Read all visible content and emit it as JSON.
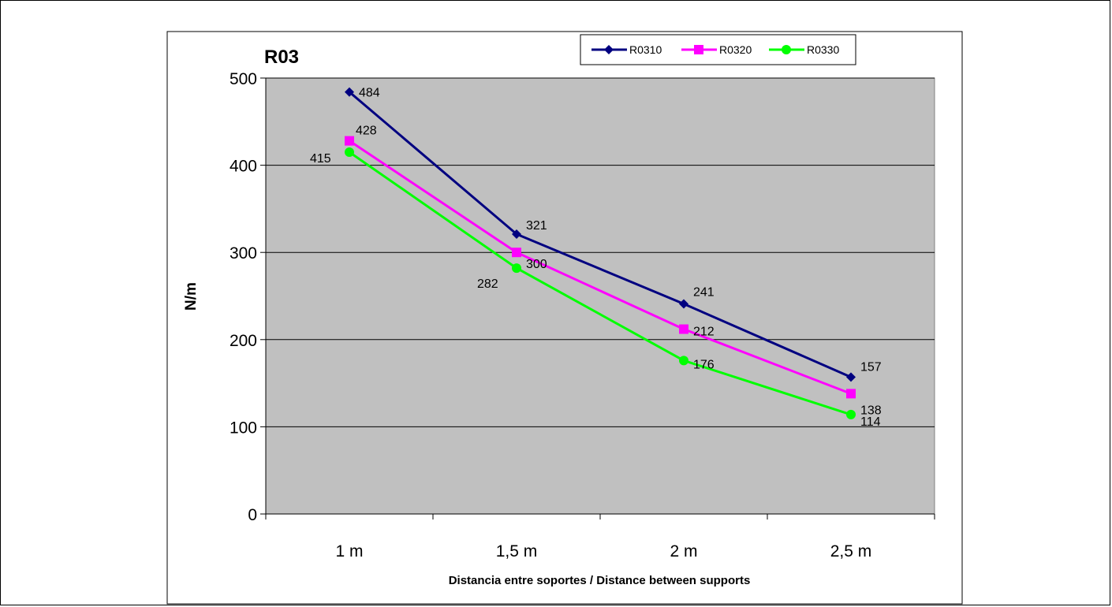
{
  "chart_data": {
    "type": "line",
    "title": "R03",
    "xlabel": "Distancia entre soportes / Distance between supports",
    "ylabel": "N/m",
    "categories": [
      "1 m",
      "1,5 m",
      "2 m",
      "2,5 m"
    ],
    "ylim": [
      0,
      500
    ],
    "yticks": [
      0,
      100,
      200,
      300,
      400,
      500
    ],
    "grid": true,
    "legend_position": "top-right",
    "plot_background": "#c0c0c0",
    "series": [
      {
        "name": "R0310",
        "values": [
          484,
          321,
          241,
          157
        ],
        "color": "#000080",
        "marker": "diamond"
      },
      {
        "name": "R0320",
        "values": [
          428,
          300,
          212,
          138
        ],
        "color": "#ff00ff",
        "marker": "square"
      },
      {
        "name": "R0330",
        "values": [
          415,
          282,
          176,
          114
        ],
        "color": "#00ff00",
        "marker": "circle"
      }
    ]
  }
}
